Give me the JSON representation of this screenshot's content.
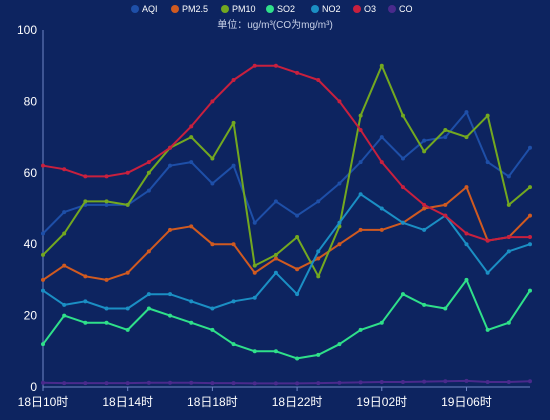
{
  "chart_data": {
    "type": "line",
    "subtitle": "单位：ug/m³(CO为mg/m³)",
    "ylim": [
      0,
      100
    ],
    "yticks": [
      "0",
      "20",
      "40",
      "60",
      "80",
      "100"
    ],
    "x_tick_labels": [
      {
        "index": 0,
        "label": "18日10时"
      },
      {
        "index": 4,
        "label": "18日14时"
      },
      {
        "index": 8,
        "label": "18日18时"
      },
      {
        "index": 12,
        "label": "18日22时"
      },
      {
        "index": 16,
        "label": "19日02时"
      },
      {
        "index": 20,
        "label": "19日06时"
      }
    ],
    "grid": false,
    "legend_position": "top-center",
    "series": [
      {
        "name": "AQI",
        "color": "#1e4fa8",
        "values": [
          43,
          49,
          51,
          51,
          51,
          55,
          62,
          63,
          57,
          62,
          46,
          52,
          48,
          52,
          57,
          63,
          70,
          64,
          69,
          70,
          77,
          63,
          59,
          67
        ]
      },
      {
        "name": "PM2.5",
        "color": "#d05a20",
        "values": [
          30,
          34,
          31,
          30,
          32,
          38,
          44,
          45,
          40,
          40,
          32,
          36,
          33,
          36,
          40,
          44,
          44,
          46,
          50,
          51,
          56,
          41,
          42,
          48
        ]
      },
      {
        "name": "PM10",
        "color": "#73a820",
        "values": [
          37,
          43,
          52,
          52,
          51,
          60,
          67,
          70,
          64,
          74,
          34,
          37,
          42,
          31,
          45,
          76,
          90,
          76,
          66,
          72,
          70,
          76,
          51,
          56
        ]
      },
      {
        "name": "SO2",
        "color": "#2fe08a",
        "values": [
          12,
          20,
          18,
          18,
          16,
          22,
          20,
          18,
          16,
          12,
          10,
          10,
          8,
          9,
          12,
          16,
          18,
          26,
          23,
          22,
          30,
          16,
          18,
          27
        ]
      },
      {
        "name": "NO2",
        "color": "#1b8fc4",
        "values": [
          27,
          23,
          24,
          22,
          22,
          26,
          26,
          24,
          22,
          24,
          25,
          32,
          26,
          38,
          46,
          54,
          50,
          46,
          44,
          48,
          40,
          32,
          38,
          40
        ]
      },
      {
        "name": "O3",
        "color": "#c8203e",
        "values": [
          62,
          61,
          59,
          59,
          60,
          63,
          67,
          73,
          80,
          86,
          90,
          90,
          88,
          86,
          80,
          72,
          63,
          56,
          51,
          48,
          43,
          41,
          42,
          42
        ]
      },
      {
        "name": "CO",
        "color": "#4a2a8c",
        "values": [
          1.2,
          1.1,
          1.1,
          1.1,
          1.1,
          1.2,
          1.2,
          1.2,
          1.1,
          1.1,
          1.0,
          1.0,
          1.0,
          1.1,
          1.2,
          1.3,
          1.4,
          1.4,
          1.5,
          1.6,
          1.7,
          1.4,
          1.4,
          1.6
        ]
      }
    ]
  }
}
